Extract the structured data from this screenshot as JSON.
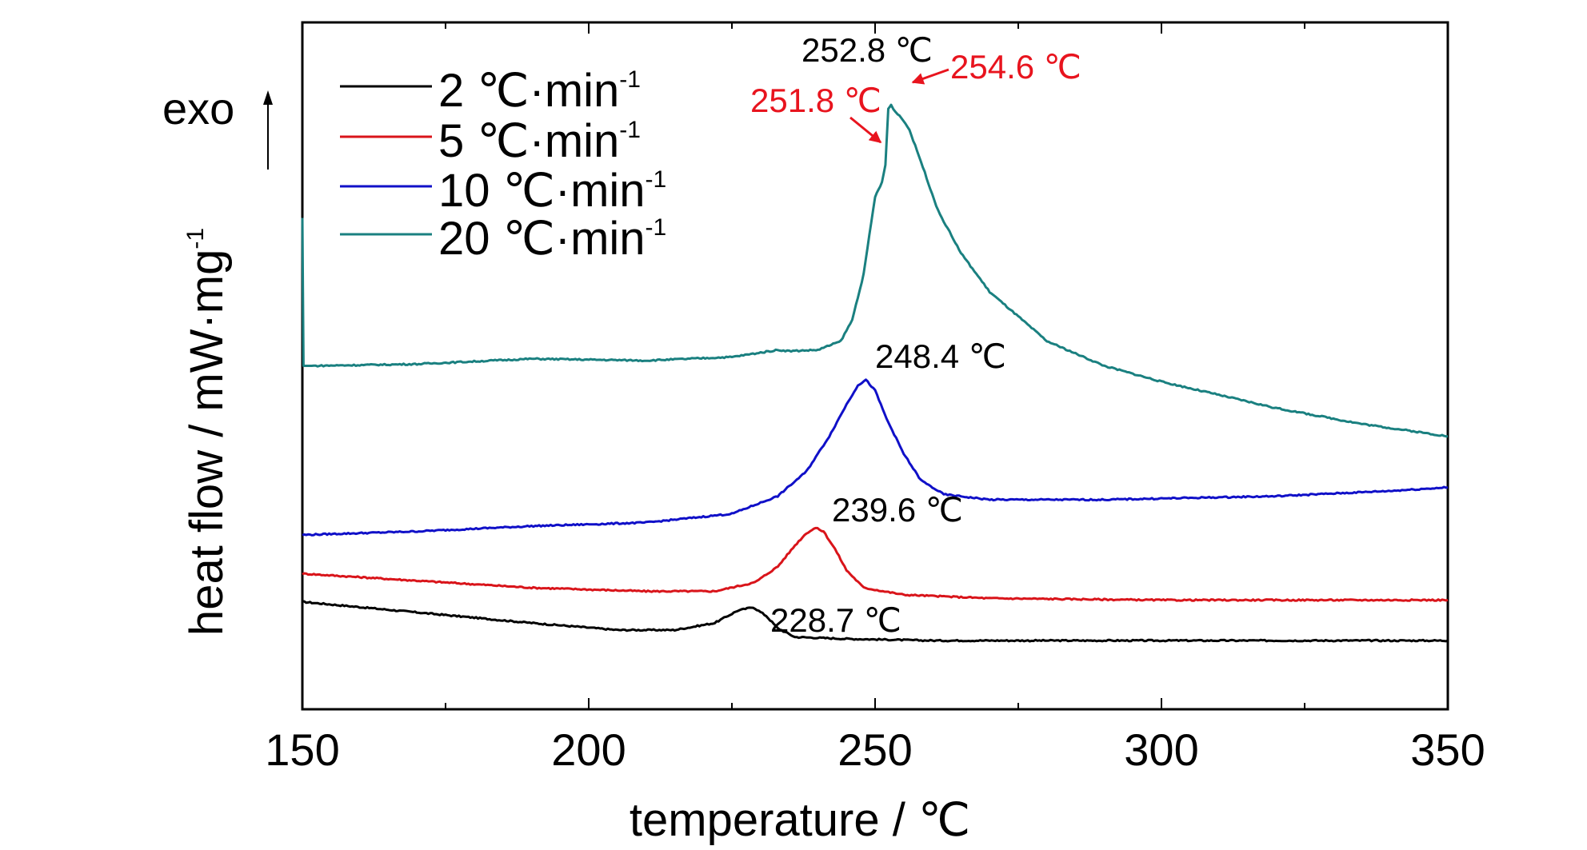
{
  "chart_data": {
    "type": "line",
    "title": "",
    "xlabel": "temperature / ℃",
    "ylabel": "heat flow / mW·mg",
    "ylabel_sup": "-1",
    "xlim": [
      150,
      350
    ],
    "x_ticks": [
      150,
      200,
      250,
      300,
      350
    ],
    "y_ticks_shown": false,
    "legend_position": "top-left",
    "exo_label": "exo",
    "series": [
      {
        "name": "2 ℃·min",
        "name_sup": "-1",
        "color": "#000000",
        "points": [
          [
            150,
            -0.59
          ],
          [
            170,
            -0.62
          ],
          [
            190,
            -0.65
          ],
          [
            205,
            -0.67
          ],
          [
            215,
            -0.67
          ],
          [
            222,
            -0.65
          ],
          [
            226,
            -0.615
          ],
          [
            228.7,
            -0.605
          ],
          [
            231,
            -0.63
          ],
          [
            233,
            -0.665
          ],
          [
            236,
            -0.69
          ],
          [
            245,
            -0.695
          ],
          [
            260,
            -0.7
          ],
          [
            280,
            -0.7
          ],
          [
            320,
            -0.7
          ],
          [
            350,
            -0.7
          ]
        ]
      },
      {
        "name": "5 ℃·min",
        "name_sup": "-1",
        "color": "#d9141a",
        "points": [
          [
            150,
            -0.51
          ],
          [
            170,
            -0.53
          ],
          [
            190,
            -0.55
          ],
          [
            210,
            -0.56
          ],
          [
            222,
            -0.56
          ],
          [
            229,
            -0.535
          ],
          [
            233,
            -0.49
          ],
          [
            236,
            -0.43
          ],
          [
            238,
            -0.395
          ],
          [
            239.6,
            -0.38
          ],
          [
            241,
            -0.39
          ],
          [
            243,
            -0.44
          ],
          [
            245,
            -0.5
          ],
          [
            248,
            -0.55
          ],
          [
            255,
            -0.57
          ],
          [
            270,
            -0.58
          ],
          [
            300,
            -0.585
          ],
          [
            350,
            -0.585
          ]
        ]
      },
      {
        "name": "10 ℃·min",
        "name_sup": "-1",
        "color": "#1010c8",
        "points": [
          [
            150,
            -0.4
          ],
          [
            170,
            -0.39
          ],
          [
            190,
            -0.375
          ],
          [
            210,
            -0.365
          ],
          [
            225,
            -0.34
          ],
          [
            233,
            -0.29
          ],
          [
            238,
            -0.22
          ],
          [
            242,
            -0.12
          ],
          [
            245,
            -0.03
          ],
          [
            247,
            0.025
          ],
          [
            248.4,
            0.04
          ],
          [
            250,
            0.01
          ],
          [
            252,
            -0.07
          ],
          [
            255,
            -0.17
          ],
          [
            258,
            -0.245
          ],
          [
            262,
            -0.285
          ],
          [
            270,
            -0.3
          ],
          [
            290,
            -0.3
          ],
          [
            320,
            -0.29
          ],
          [
            340,
            -0.275
          ],
          [
            350,
            -0.265
          ]
        ]
      },
      {
        "name": "20 ℃·min",
        "name_sup": "-1",
        "color": "#1a8080",
        "points": [
          [
            150,
            0.5
          ],
          [
            150.2,
            0.08
          ],
          [
            152,
            0.08
          ],
          [
            170,
            0.085
          ],
          [
            190,
            0.1
          ],
          [
            210,
            0.095
          ],
          [
            225,
            0.105
          ],
          [
            233,
            0.125
          ],
          [
            235,
            0.122
          ],
          [
            240,
            0.125
          ],
          [
            244,
            0.15
          ],
          [
            246,
            0.21
          ],
          [
            248,
            0.34
          ],
          [
            249,
            0.45
          ],
          [
            250,
            0.56
          ],
          [
            251.2,
            0.6
          ],
          [
            251.8,
            0.65
          ],
          [
            252.3,
            0.81
          ],
          [
            252.8,
            0.82
          ],
          [
            253.6,
            0.8
          ],
          [
            254.6,
            0.785
          ],
          [
            256,
            0.75
          ],
          [
            258,
            0.66
          ],
          [
            261,
            0.52
          ],
          [
            265,
            0.4
          ],
          [
            270,
            0.29
          ],
          [
            280,
            0.15
          ],
          [
            290,
            0.08
          ],
          [
            300,
            0.035
          ],
          [
            320,
            -0.04
          ],
          [
            335,
            -0.085
          ],
          [
            350,
            -0.12
          ]
        ]
      }
    ],
    "annotations": [
      {
        "text": "228.7 ℃",
        "x": 228.7,
        "y": -0.605,
        "color": "#000000"
      },
      {
        "text": "239.6 ℃",
        "x": 239.6,
        "y": -0.38,
        "color": "#000000"
      },
      {
        "text": "248.4 ℃",
        "x": 248.4,
        "y": 0.04,
        "color": "#000000"
      },
      {
        "text": "252.8 ℃",
        "x": 252.8,
        "y": 0.82,
        "color": "#000000"
      },
      {
        "text": "251.8 ℃",
        "x": 251.8,
        "y": 0.65,
        "color": "#e8141e"
      },
      {
        "text": "254.6 ℃",
        "x": 254.6,
        "y": 0.785,
        "color": "#e8141e"
      }
    ]
  }
}
